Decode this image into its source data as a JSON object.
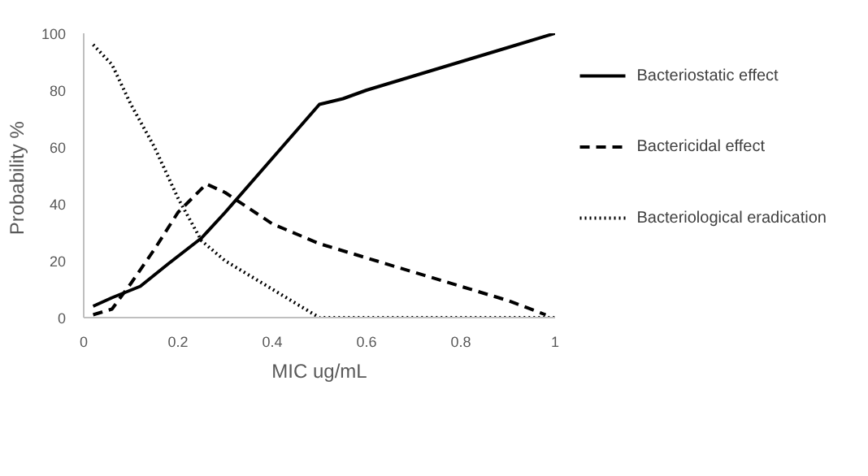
{
  "chart_data": {
    "type": "line",
    "xlabel": "MIC ug/mL",
    "ylabel": "Probability  %",
    "xlim": [
      0,
      1
    ],
    "ylim": [
      0,
      100
    ],
    "xticks": [
      0,
      0.2,
      0.4,
      0.6,
      0.8,
      1
    ],
    "yticks": [
      0,
      20,
      40,
      60,
      80,
      100
    ],
    "grid": false,
    "legend": "right",
    "marker": "none",
    "series": [
      {
        "name": "Bacteriostatic effect",
        "color": "#000000",
        "line_style": "solid",
        "x": [
          0.02,
          0.06,
          0.12,
          0.18,
          0.25,
          0.3,
          0.4,
          0.5,
          0.55,
          0.6,
          0.7,
          0.8,
          0.9,
          1
        ],
        "values": [
          4,
          7,
          11,
          19,
          28,
          37,
          56,
          75,
          77,
          80,
          85,
          90,
          95,
          100
        ]
      },
      {
        "name": "Bactericidal effect",
        "color": "#000000",
        "line_style": "dashed",
        "x": [
          0.02,
          0.06,
          0.1,
          0.15,
          0.2,
          0.26,
          0.3,
          0.4,
          0.5,
          0.6,
          0.7,
          0.8,
          0.9,
          0.98
        ],
        "values": [
          1,
          3,
          12,
          24,
          37,
          47,
          44,
          33,
          26,
          21,
          16,
          11,
          6,
          1
        ]
      },
      {
        "name": "Bacteriological eradication",
        "color": "#000000",
        "line_style": "dotted",
        "x": [
          0.02,
          0.06,
          0.1,
          0.15,
          0.2,
          0.25,
          0.3,
          0.4,
          0.5,
          1
        ],
        "values": [
          96,
          89,
          75,
          60,
          42,
          27,
          20,
          10,
          0,
          0
        ]
      }
    ]
  }
}
